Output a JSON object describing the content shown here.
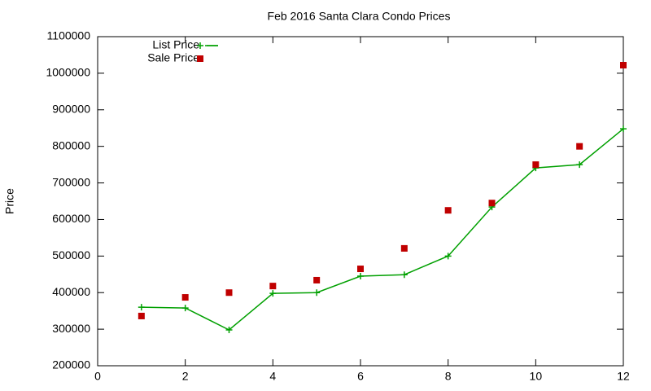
{
  "chart_data": {
    "type": "line",
    "title": "Feb 2016 Santa Clara Condo Prices",
    "y_label": "Price",
    "x": [
      1,
      2,
      3,
      4,
      5,
      6,
      7,
      8,
      9,
      10,
      11,
      12
    ],
    "series": [
      {
        "name": "List Price",
        "color": "#00a000",
        "mode": "lines+points",
        "values": [
          360000,
          358000,
          298000,
          398000,
          400000,
          445000,
          449000,
          500000,
          634000,
          741000,
          750000,
          848000
        ]
      },
      {
        "name": "Sale Price",
        "color": "#c00000",
        "mode": "points",
        "values": [
          336000,
          387000,
          400000,
          418000,
          434000,
          465000,
          521000,
          625000,
          645000,
          750000,
          800000,
          1022000
        ]
      }
    ],
    "xlim": [
      0,
      12
    ],
    "xticks": [
      0,
      2,
      4,
      6,
      8,
      10,
      12
    ],
    "ylim": [
      200000,
      1100000
    ],
    "yticks": [
      200000,
      300000,
      400000,
      500000,
      600000,
      700000,
      800000,
      900000,
      1000000,
      1100000
    ],
    "grid": false,
    "legend": "top-left"
  }
}
